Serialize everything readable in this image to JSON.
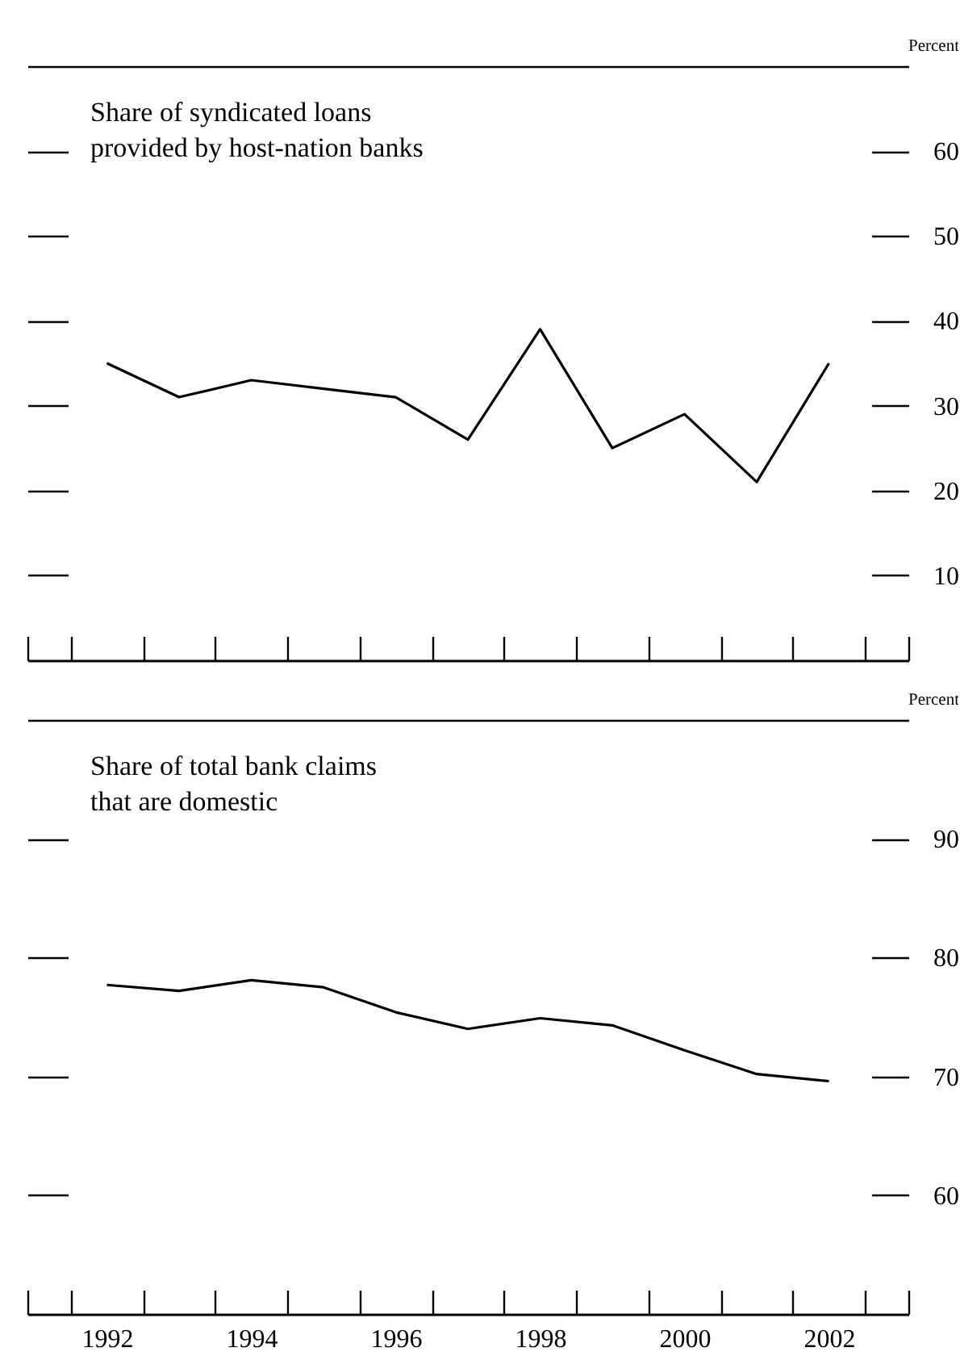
{
  "chart_data": [
    {
      "type": "line",
      "title": "Share of syndicated loans\nprovided by host-nation banks",
      "ylabel": "Percent",
      "x": [
        1992,
        1993,
        1994,
        1995,
        1996,
        1997,
        1998,
        1999,
        2000,
        2001,
        2002
      ],
      "series": [
        {
          "color": "#000000",
          "values": [
            35,
            31,
            33,
            32,
            31,
            26,
            39,
            25,
            29,
            21,
            35
          ]
        }
      ],
      "xlim": [
        1990.9,
        2003.1
      ],
      "xticks": [
        {
          "value": 1990.9,
          "label": null
        },
        {
          "value": 1991.5,
          "label": null
        },
        {
          "value": 1992.5,
          "label": null
        },
        {
          "value": 1993.5,
          "label": null
        },
        {
          "value": 1994.5,
          "label": null
        },
        {
          "value": 1995.5,
          "label": null
        },
        {
          "value": 1996.5,
          "label": null
        },
        {
          "value": 1997.5,
          "label": null
        },
        {
          "value": 1998.5,
          "label": null
        },
        {
          "value": 1999.5,
          "label": null
        },
        {
          "value": 2000.5,
          "label": null
        },
        {
          "value": 2001.5,
          "label": null
        },
        {
          "value": 2002.5,
          "label": null
        },
        {
          "value": 2003.1,
          "label": null
        }
      ],
      "ylim": [
        0,
        70
      ],
      "yticks": [
        10,
        20,
        30,
        40,
        50,
        60
      ],
      "tick_labels": "y"
    },
    {
      "type": "line",
      "title": "Share of total bank claims\nthat are domestic",
      "ylabel": "Percent",
      "x": [
        1992,
        1993,
        1994,
        1995,
        1996,
        1997,
        1998,
        1999,
        2000,
        2001,
        2002
      ],
      "series": [
        {
          "color": "#000000",
          "values": [
            77.7,
            77.2,
            78.1,
            77.5,
            75.4,
            74.0,
            74.9,
            74.3,
            72.2,
            70.2,
            69.6
          ]
        }
      ],
      "xlim": [
        1990.9,
        2003.1
      ],
      "xticks": [
        {
          "value": 1990.9,
          "label": null
        },
        {
          "value": 1991.5,
          "label": null
        },
        1992,
        {
          "value": 1992.5,
          "label": null
        },
        {
          "value": 1993.5,
          "label": null
        },
        1994,
        {
          "value": 1994.5,
          "label": null
        },
        {
          "value": 1995.5,
          "label": null
        },
        1996,
        {
          "value": 1996.5,
          "label": null
        },
        {
          "value": 1997.5,
          "label": null
        },
        1998,
        {
          "value": 1998.5,
          "label": null
        },
        {
          "value": 1999.5,
          "label": null
        },
        2000,
        {
          "value": 2000.5,
          "label": null
        },
        {
          "value": 2001.5,
          "label": null
        },
        2002,
        {
          "value": 2002.5,
          "label": null
        },
        {
          "value": 2003.1,
          "label": null
        }
      ],
      "ylim": [
        50,
        100
      ],
      "yticks": [
        60,
        70,
        80,
        90
      ]
    }
  ]
}
